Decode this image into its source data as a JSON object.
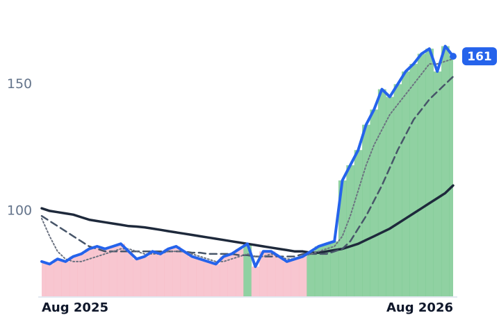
{
  "chart_data": {
    "type": "line",
    "x": [
      0,
      1,
      2,
      3,
      4,
      5,
      6,
      7,
      8,
      9,
      10,
      11,
      12,
      13,
      14,
      15,
      16,
      17,
      18,
      19,
      20,
      21,
      22,
      23,
      24,
      25,
      26,
      27,
      28,
      29,
      30,
      31,
      32,
      33,
      34,
      35,
      36,
      37,
      38,
      39,
      40,
      41,
      42,
      43,
      44,
      45,
      46,
      47,
      48,
      49,
      50,
      51,
      52
    ],
    "xlim": [
      0,
      52
    ],
    "xticks": [
      {
        "value": 0,
        "label": "Aug 2025"
      },
      {
        "value": 52,
        "label": "Aug 2026"
      }
    ],
    "ylim": [
      66,
      175
    ],
    "yticks": [
      100,
      150
    ],
    "grid": false,
    "above_color": "#7cc992",
    "below_color": "#f7bcc8",
    "series": [
      {
        "color": "#2563eb",
        "style": "solid",
        "width": 4,
        "values": [
          80,
          79,
          81,
          80,
          82,
          83,
          85,
          86,
          85,
          86,
          87,
          84,
          81,
          82,
          84,
          83,
          85,
          86,
          84,
          82,
          81,
          80,
          79,
          82,
          83,
          85,
          87,
          78,
          84,
          84,
          82,
          80,
          81,
          82,
          84,
          86,
          87,
          88,
          112,
          118,
          124,
          134,
          140,
          148,
          145,
          150,
          155,
          158,
          162,
          164,
          155,
          165,
          161
        ]
      },
      {
        "color": "#6b7280",
        "style": "dotted",
        "width": 2,
        "values": [
          97,
          90,
          84,
          81,
          80,
          80,
          81,
          82,
          83,
          84,
          85,
          85,
          84,
          83,
          83,
          83,
          84,
          84,
          84,
          83,
          82,
          81,
          80,
          80,
          81,
          82,
          83,
          82,
          82,
          83,
          82,
          81,
          81,
          82,
          83,
          84,
          85,
          86,
          90,
          98,
          108,
          118,
          126,
          132,
          138,
          142,
          146,
          150,
          154,
          158,
          158,
          159,
          160
        ]
      },
      {
        "color": "#475569",
        "style": "dashed",
        "width": 2.5,
        "values": [
          98,
          96,
          94,
          92,
          90,
          88,
          86,
          85,
          84,
          84,
          84,
          84,
          84,
          84,
          84,
          84,
          84,
          84,
          84,
          83.5,
          83.5,
          83,
          83,
          83,
          83,
          82.5,
          82.5,
          82,
          82,
          82,
          82,
          82,
          82,
          83,
          83,
          83,
          83,
          84,
          85,
          88,
          93,
          98,
          104,
          110,
          117,
          124,
          130,
          136,
          140,
          144,
          147,
          150,
          153
        ]
      },
      {
        "color": "#1e293b",
        "style": "solid",
        "width": 3.5,
        "values": [
          101,
          100,
          99.5,
          99,
          98.5,
          97.5,
          96.5,
          96,
          95.5,
          95,
          94.5,
          94,
          93.8,
          93.5,
          93,
          92.5,
          92,
          91.5,
          91,
          90.5,
          90,
          89.5,
          89,
          88.5,
          88,
          87.5,
          87,
          86.5,
          86,
          85.5,
          85,
          84.5,
          84,
          84,
          83.5,
          83.5,
          84,
          84.5,
          85,
          86,
          87,
          88.5,
          90,
          91.5,
          93,
          95,
          97,
          99,
          101,
          103,
          105,
          107,
          110
        ]
      }
    ]
  }
}
